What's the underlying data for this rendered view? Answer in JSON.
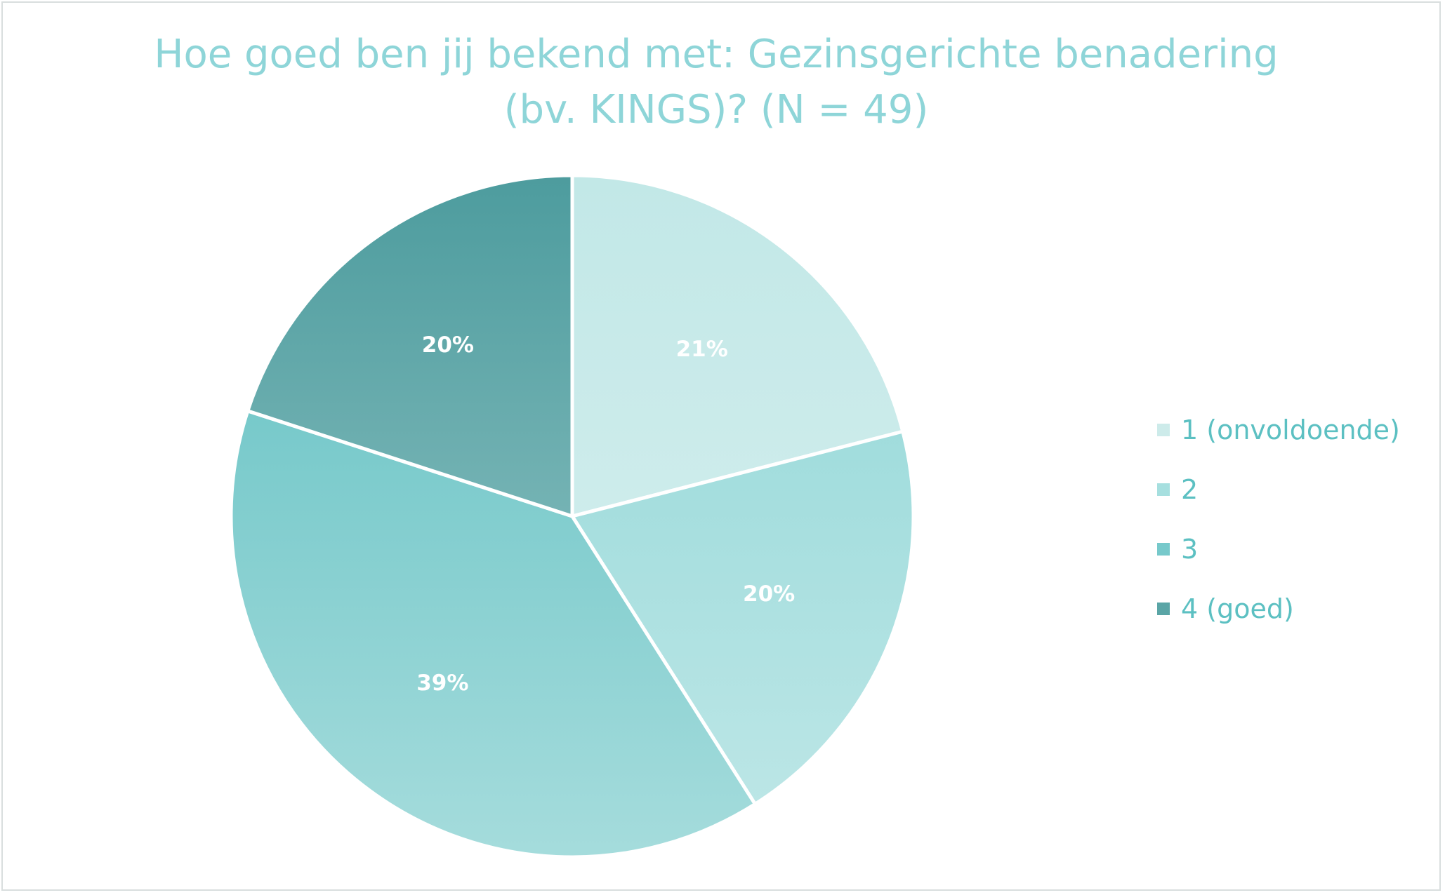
{
  "chart_data": {
    "type": "pie",
    "title": "Hoe goed ben jij bekend met: Gezinsgerichte benadering (bv. KINGS)? (N = 49)",
    "categories": [
      "1 (onvoldoende)",
      "2",
      "3",
      "4 (goed)"
    ],
    "values": [
      21,
      20,
      39,
      20
    ],
    "data_labels": [
      "21%",
      "20%",
      "39%",
      "20%"
    ],
    "legend_position": "right",
    "colors": [
      {
        "top": "#c2e8e7",
        "bottom": "#d9f0f0"
      },
      {
        "top": "#8ed6d6",
        "bottom": "#bfe7e7"
      },
      {
        "top": "#5fbfc1",
        "bottom": "#a5dcdc"
      },
      {
        "top": "#4d9c9e",
        "bottom": "#9ccaca"
      }
    ],
    "legend_swatch_colors": [
      "#cdebea",
      "#a6dfdf",
      "#77c9cb",
      "#5aa5a6"
    ]
  }
}
